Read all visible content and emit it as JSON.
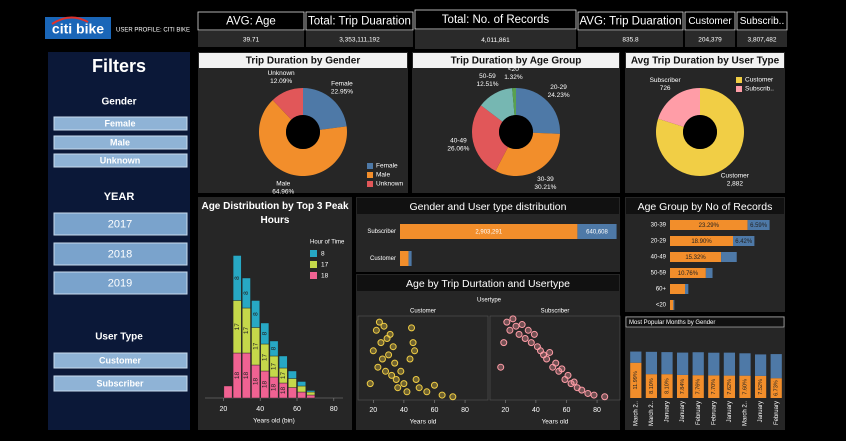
{
  "header": {
    "logo": "citi bike",
    "profile": "USER PROFILE: CITI BIKE"
  },
  "kpis": [
    {
      "title": "AVG: Age",
      "value": "39.71"
    },
    {
      "title": "Total: Trip Duaration",
      "value": "3,353,111,192"
    },
    {
      "title": "Total: No. of Records",
      "value": "4,011,861"
    },
    {
      "title": "AVG: Trip Duaration",
      "value": "835.8"
    },
    {
      "title": "Customer",
      "value": "204,379"
    },
    {
      "title": "Subscrib..",
      "value": "3,807,482"
    }
  ],
  "filters": {
    "title": "Filters",
    "groups": [
      {
        "title": "Gender",
        "options": [
          "Female",
          "Male",
          "Unknown"
        ]
      },
      {
        "title": "YEAR",
        "options": [
          "2017",
          "2018",
          "2019"
        ]
      },
      {
        "title": "User Type",
        "options": [
          "Customer",
          "Subscriber"
        ]
      }
    ]
  },
  "chart_data": [
    {
      "type": "pie",
      "title": "Trip Duration by Gender",
      "categories": [
        "Female",
        "Male",
        "Unknown"
      ],
      "values": [
        22.95,
        64.96,
        12.09
      ],
      "value_labels": [
        "22.95%",
        "64.96%",
        "12.09%"
      ],
      "colors": [
        "#4e79a7",
        "#f28e2b",
        "#e15759"
      ],
      "legend": "bottom-right"
    },
    {
      "type": "pie",
      "title": "Trip Duration by Age Group",
      "categories": [
        "20-29",
        "30-39",
        "40-49",
        "50-59",
        "<20"
      ],
      "values": [
        24.23,
        30.21,
        26.06,
        12.51,
        1.32
      ],
      "value_labels": [
        "24.23%",
        "30.21%",
        "26.06%",
        "12.51%",
        "1.32%"
      ],
      "colors": [
        "#4e79a7",
        "#f28e2b",
        "#e15759",
        "#76b7b2",
        "#59a14f"
      ]
    },
    {
      "type": "pie",
      "title": "Avg Trip Duration by User Type",
      "categories": [
        "Customer",
        "Subscriber"
      ],
      "values": [
        2882,
        726
      ],
      "value_labels": [
        "2,882",
        "726"
      ],
      "colors": [
        "#f1ce45",
        "#ff9da7"
      ],
      "legend": "top-right",
      "legend_labels": [
        "Customer",
        "Subscrib.."
      ]
    },
    {
      "type": "histogram",
      "title": "Age Distribution by Top 3 Peak Hours",
      "bins": [
        20,
        25,
        30,
        35,
        40,
        45,
        50,
        55,
        60,
        65,
        70
      ],
      "series": [
        {
          "name": "18",
          "color": "#f06292",
          "values": [
            8,
            30,
            30,
            22,
            18,
            14,
            10,
            7,
            4,
            2
          ]
        },
        {
          "name": "17",
          "color": "#c5d84a",
          "values": [
            0,
            35,
            30,
            25,
            18,
            14,
            10,
            6,
            4,
            2
          ]
        },
        {
          "name": "8",
          "color": "#27a8c4",
          "values": [
            0,
            30,
            20,
            18,
            14,
            10,
            8,
            5,
            3,
            1
          ]
        }
      ],
      "xlabel": "Years old (bin)",
      "xlim": [
        10,
        85
      ],
      "xticks": [
        20,
        40,
        60,
        80
      ],
      "ylim": [
        0,
        100
      ],
      "legend_title": "Hour of Time",
      "legend": "top-right"
    },
    {
      "type": "hbar",
      "title": "Gender and User type distribution",
      "categories": [
        "Subscriber",
        "Customer"
      ],
      "series": [
        {
          "color": "#f28e2b",
          "values": [
            2903291,
            140000
          ],
          "value_labels": [
            "2,903,291",
            null
          ]
        },
        {
          "color": "#4e79a7",
          "values": [
            640608,
            50000
          ],
          "value_labels": [
            "640,608",
            null
          ]
        }
      ],
      "xlim": [
        0,
        3600000
      ]
    },
    {
      "type": "scatter",
      "title": "Age by Trip Durtation and Usertype",
      "facet_title": "Usertype",
      "series": [
        {
          "name": "Customer",
          "color": "#f1ce45",
          "x": [
            18,
            20,
            22,
            23,
            24,
            25,
            26,
            27,
            28,
            29,
            30,
            31,
            32,
            33,
            34,
            35,
            36,
            38,
            40,
            42,
            44,
            45,
            46,
            47,
            48,
            50,
            55,
            60,
            65,
            72
          ],
          "values": [
            20,
            60,
            85,
            40,
            95,
            70,
            50,
            90,
            35,
            75,
            55,
            80,
            30,
            65,
            45,
            25,
            15,
            35,
            20,
            10,
            50,
            88,
            70,
            60,
            25,
            15,
            10,
            18,
            6,
            4
          ]
        },
        {
          "name": "Subscriber",
          "color": "#ff9da7",
          "x": [
            17,
            19,
            21,
            23,
            25,
            27,
            29,
            31,
            33,
            35,
            37,
            39,
            41,
            43,
            45,
            47,
            49,
            51,
            53,
            55,
            57,
            59,
            61,
            63,
            65,
            67,
            70,
            74,
            78,
            85
          ],
          "values": [
            40,
            70,
            95,
            85,
            99,
            90,
            80,
            92,
            75,
            85,
            70,
            80,
            65,
            60,
            55,
            50,
            58,
            40,
            45,
            35,
            38,
            25,
            30,
            20,
            22,
            15,
            12,
            8,
            6,
            4
          ]
        }
      ],
      "xlabel": "Years old",
      "xlim": [
        10,
        95
      ],
      "xticks": [
        20,
        40,
        60,
        80
      ],
      "ylim": [
        0,
        100
      ]
    },
    {
      "type": "hbar",
      "title": "Age Group by No of Records",
      "categories": [
        "30-39",
        "20-29",
        "40-49",
        "50-59",
        "60+",
        "<20"
      ],
      "series": [
        {
          "color": "#f28e2b",
          "values": [
            23.29,
            18.9,
            15.32,
            10.76,
            4.5,
            1.0
          ],
          "value_labels": [
            "23.29%",
            "18.90%",
            "15.32%",
            "10.76%",
            null,
            null
          ]
        },
        {
          "color": "#4e79a7",
          "values": [
            6.59,
            6.42,
            4.7,
            2.0,
            1.0,
            0.3
          ],
          "value_labels": [
            "6.59%",
            "6.42%",
            null,
            null,
            null,
            null
          ]
        }
      ],
      "xlim": [
        0,
        33
      ]
    },
    {
      "type": "column",
      "title": "Most Popular Months  by Gender",
      "categories": [
        "March 2..",
        "March 2..",
        "January",
        "January",
        "February",
        "February",
        "January",
        "March 2..",
        "January",
        "February"
      ],
      "series": [
        {
          "color": "#f28e2b",
          "values": [
            11.99,
            8.1,
            8.1,
            7.84,
            7.76,
            7.7,
            7.62,
            7.6,
            7.52,
            6.73
          ],
          "value_labels": [
            "11.99%",
            "8.10%",
            "8.10%",
            "7.84%",
            "7.76%",
            "7.70%",
            "7.62%",
            "7.60%",
            "7.52%",
            "6.73%"
          ]
        },
        {
          "color": "#4e79a7",
          "values": [
            3.8,
            7.6,
            7.5,
            7.6,
            7.8,
            7.7,
            7.8,
            7.6,
            7.3,
            8.2
          ]
        }
      ],
      "ylim": [
        0,
        17
      ]
    }
  ]
}
